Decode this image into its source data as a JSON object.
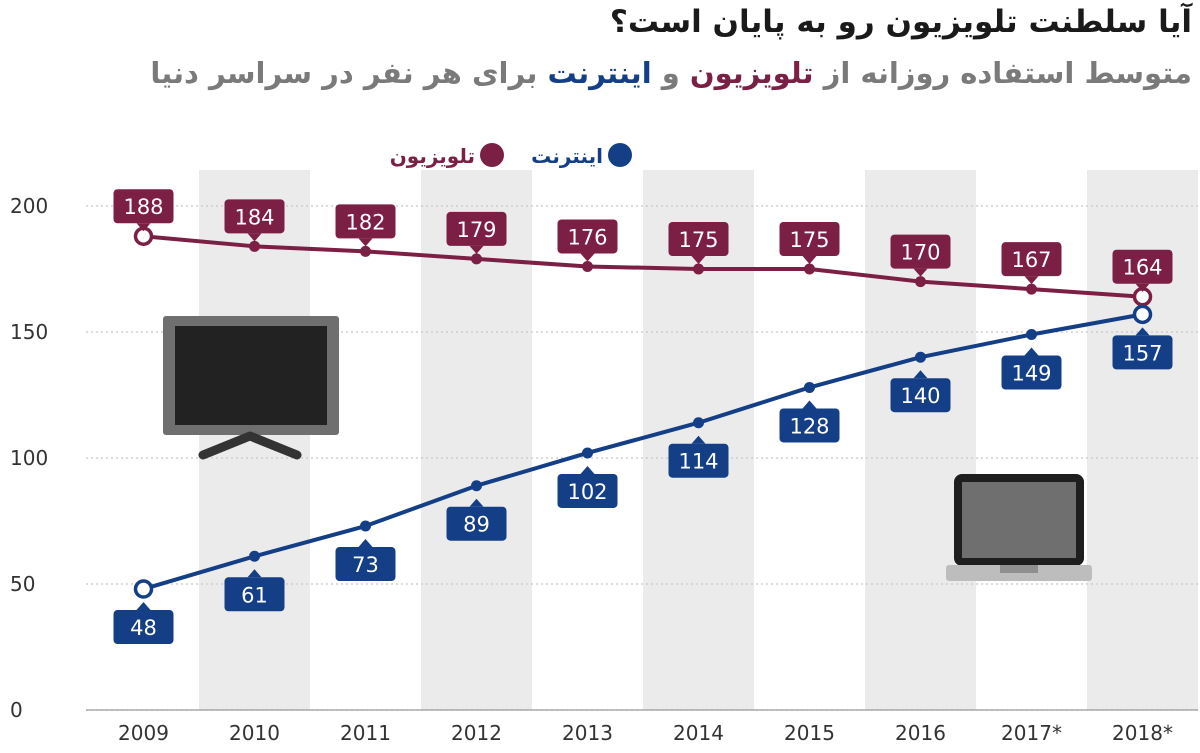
{
  "header": {
    "title": "آیا سلطنت تلویزیون رو به پایان است؟",
    "subtitle_start": "متوسط استفاده روزانه از ",
    "subtitle_tv": "تلویزیون",
    "subtitle_and": " و ",
    "subtitle_net": "اینترنت",
    "subtitle_end": " برای هر نفر در سراسر دنیا"
  },
  "colors": {
    "tv": "#7c1f45",
    "internet": "#143f86",
    "band": "#ebebeb",
    "grid": "#c8c8c8"
  },
  "icons": {
    "tv": "tv-icon",
    "laptop": "laptop-icon"
  },
  "chart_data": {
    "type": "line",
    "categories": [
      "2009",
      "2010",
      "2011",
      "2012",
      "2013",
      "2014",
      "2015",
      "2016",
      "2017*",
      "2018*"
    ],
    "series": [
      {
        "name": "تلویزیون",
        "key": "tv",
        "values": [
          188,
          184,
          182,
          179,
          176,
          175,
          175,
          170,
          167,
          164
        ]
      },
      {
        "name": "اینترنت",
        "key": "internet",
        "values": [
          48,
          61,
          73,
          89,
          102,
          114,
          128,
          140,
          149,
          157
        ]
      }
    ],
    "ylim": [
      0,
      200
    ],
    "yticks": [
      "0",
      "50",
      "100",
      "150",
      "200"
    ],
    "grid": true,
    "legend_position": "top"
  }
}
